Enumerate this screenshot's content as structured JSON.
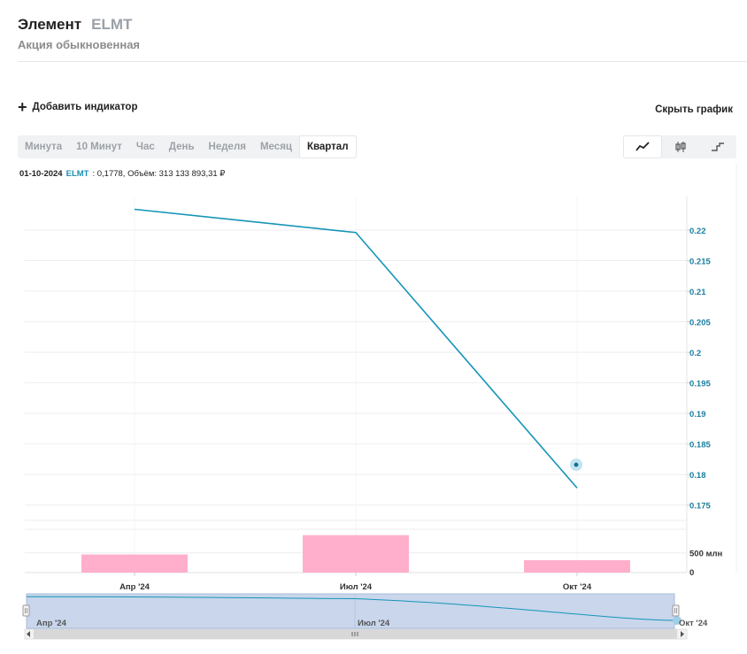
{
  "header": {
    "company": "Элемент",
    "ticker": "ELMT",
    "subtitle": "Акция обыкновенная"
  },
  "toolbar": {
    "add_indicator": "Добавить индикатор",
    "hide_chart": "Скрыть график"
  },
  "periods": [
    {
      "label": "Минута",
      "active": false
    },
    {
      "label": "10 Минут",
      "active": false
    },
    {
      "label": "Час",
      "active": false
    },
    {
      "label": "День",
      "active": false
    },
    {
      "label": "Неделя",
      "active": false
    },
    {
      "label": "Месяц",
      "active": false
    },
    {
      "label": "Квартал",
      "active": true
    }
  ],
  "chart_types": [
    {
      "icon": "line-chart-icon",
      "active": true
    },
    {
      "icon": "candlestick-icon",
      "active": false
    },
    {
      "icon": "step-chart-icon",
      "active": false
    }
  ],
  "legend": {
    "date": "01-10-2024",
    "ticker": "ELMT",
    "value": ": 0,1778, Объём: 313 133 893,31 ₽"
  },
  "colors": {
    "price_line": "#1595b8",
    "volume_bar": "#ffafcb",
    "navigator_fill": "#c9d6ec",
    "accent_text": "#1b7fa1"
  },
  "chart_data": {
    "type": "line",
    "x": [
      "Апр '24",
      "Июл '24",
      "Окт '24"
    ],
    "price": [
      0.2234,
      0.2196,
      0.1778
    ],
    "volume": [
      460000000,
      950000000,
      313133893.31
    ],
    "y_ticks": [
      "0.22",
      "0.215",
      "0.21",
      "0.205",
      "0.2",
      "0.195",
      "0.19",
      "0.185",
      "0.18",
      "0.175"
    ],
    "y_range": [
      0.1725,
      0.2255
    ],
    "volume_ticks": [
      "500 млн",
      "0"
    ],
    "volume_range": [
      0,
      1100000000
    ],
    "marker_value": 0.1816,
    "navigator_labels": [
      "Апр '24",
      "Июл '24",
      "Окт '24"
    ],
    "grid": true
  }
}
